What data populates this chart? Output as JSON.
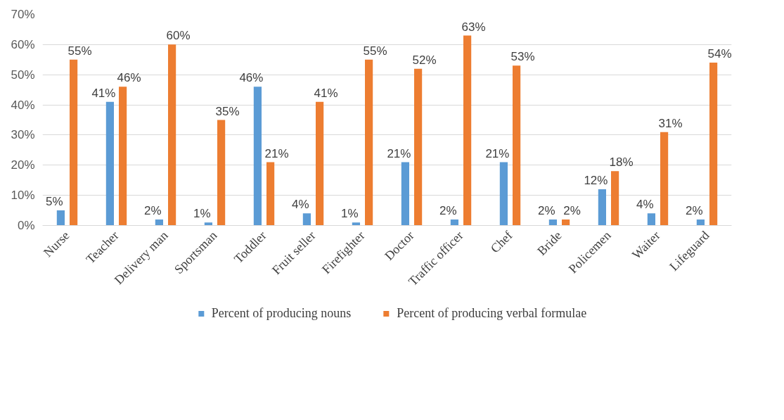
{
  "chart_data": {
    "type": "bar",
    "categories": [
      "Nurse",
      "Teacher",
      "Delivery man",
      "Sportsman",
      "Toddler",
      "Fruit seller",
      "Firefighter",
      "Doctor",
      "Traffic officer",
      "Chef",
      "Bride",
      "Policemen",
      "Waiter",
      "Lifeguard"
    ],
    "series": [
      {
        "name": "Percent of producing nouns",
        "color": "#5b9bd5",
        "values": [
          5,
          41,
          2,
          1,
          46,
          4,
          1,
          21,
          2,
          21,
          2,
          12,
          4,
          2
        ],
        "value_labels": [
          "5%",
          "41%",
          "2%",
          "1%",
          "46%",
          "4%",
          "1%",
          "21%",
          "2%",
          "21%",
          "2%",
          "12%",
          "4%",
          "2%"
        ]
      },
      {
        "name": "Percent of producing verbal formulae",
        "color": "#ed7d31",
        "values": [
          55,
          46,
          60,
          35,
          21,
          41,
          55,
          52,
          63,
          53,
          2,
          18,
          31,
          54
        ],
        "value_labels": [
          "55%",
          "46%",
          "60%",
          "35%",
          "21%",
          "41%",
          "55%",
          "52%",
          "63%",
          "53%",
          "2%",
          "18%",
          "31%",
          "54%"
        ]
      }
    ],
    "ylim": [
      0,
      70
    ],
    "yticks": [
      {
        "value": 0,
        "label": "0%"
      },
      {
        "value": 10,
        "label": "10%"
      },
      {
        "value": 20,
        "label": "20%"
      },
      {
        "value": 30,
        "label": "30%"
      },
      {
        "value": 40,
        "label": "40%"
      },
      {
        "value": 50,
        "label": "50%"
      },
      {
        "value": 60,
        "label": "60%"
      },
      {
        "value": 70,
        "label": "70%"
      }
    ],
    "grid": "y",
    "legend": "bottom"
  }
}
